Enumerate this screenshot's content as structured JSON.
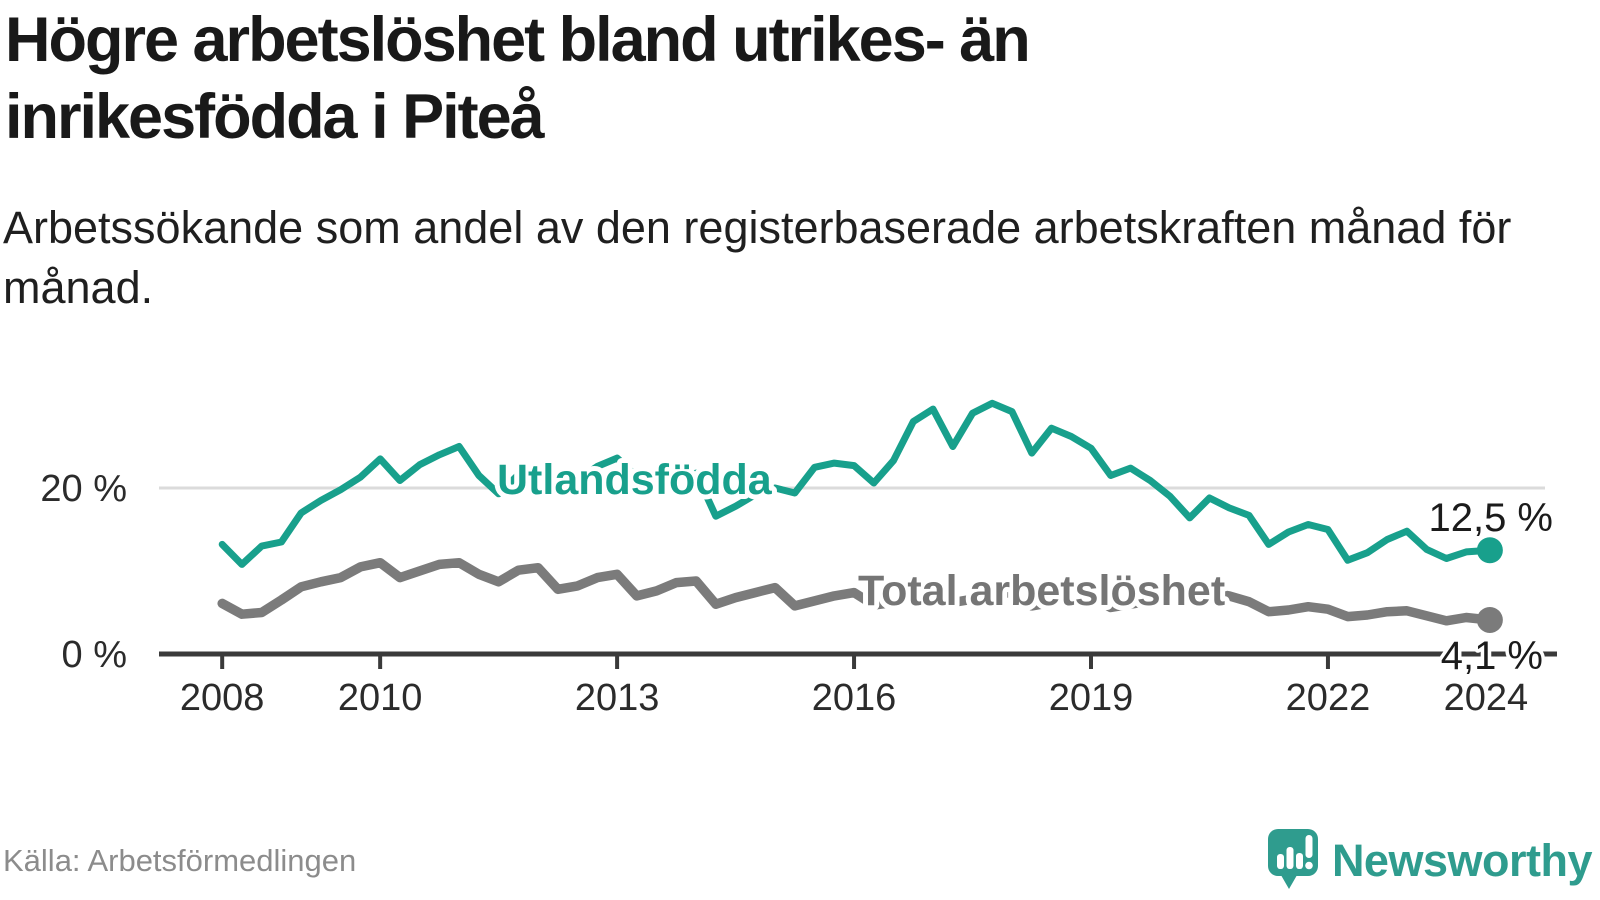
{
  "header": {
    "title": "Högre arbetslöshet bland utrikes- än inrikesfödda i Piteå",
    "subtitle": "Arbetssökande som andel av den registerbaserade arbetskraften månad för månad."
  },
  "footer": {
    "source": "Källa: Arbetsförmedlingen",
    "brand_name": "Newsworthy"
  },
  "colors": {
    "teal": "#18a08c",
    "gray": "#7b7b7b",
    "gray_label": "#757575",
    "axis": "#3a3a3a",
    "gridline": "#dbdbdb",
    "tick_text": "#2b2b2b",
    "value_text": "#1b1b1b",
    "logo_teal": "#2f9c8e"
  },
  "chart_data": {
    "type": "line",
    "x_unit": "decimal_year",
    "xlim": [
      2007.2,
      2024.9
    ],
    "ylim": [
      0,
      33
    ],
    "grid": "y-20-only",
    "x_ticks": [
      {
        "value": 2008,
        "label": "2008"
      },
      {
        "value": 2010,
        "label": "2010"
      },
      {
        "value": 2013,
        "label": "2013"
      },
      {
        "value": 2016,
        "label": "2016"
      },
      {
        "value": 2019,
        "label": "2019"
      },
      {
        "value": 2022,
        "label": "2022"
      },
      {
        "value": 2024,
        "label": "2024"
      }
    ],
    "y_ticks": [
      {
        "value": 0,
        "label": "0 %"
      },
      {
        "value": 20,
        "label": "20 %"
      }
    ],
    "x": [
      2008,
      2008.25,
      2008.5,
      2008.75,
      2009,
      2009.25,
      2009.5,
      2009.75,
      2010,
      2010.25,
      2010.5,
      2010.75,
      2011,
      2011.25,
      2011.5,
      2011.75,
      2012,
      2012.25,
      2012.5,
      2012.75,
      2013,
      2013.25,
      2013.5,
      2013.75,
      2014,
      2014.25,
      2014.5,
      2014.75,
      2015,
      2015.25,
      2015.5,
      2015.75,
      2016,
      2016.25,
      2016.5,
      2016.75,
      2017,
      2017.25,
      2017.5,
      2017.75,
      2018,
      2018.25,
      2018.5,
      2018.75,
      2019,
      2019.25,
      2019.5,
      2019.75,
      2020,
      2020.25,
      2020.5,
      2020.75,
      2021,
      2021.25,
      2021.5,
      2021.75,
      2022,
      2022.25,
      2022.5,
      2022.75,
      2023,
      2023.25,
      2023.5,
      2023.75,
      2024.05
    ],
    "series": [
      {
        "name": "Utlandsfödda",
        "end_label": "12,5 %",
        "end_value": 12.5,
        "values": [
          13.2,
          10.8,
          13.0,
          13.5,
          17.0,
          18.5,
          19.8,
          21.3,
          23.5,
          20.9,
          22.8,
          24.0,
          25.0,
          21.5,
          19.3,
          21.6,
          21.8,
          20.4,
          21.0,
          22.6,
          23.6,
          21.4,
          20.2,
          21.2,
          21.8,
          16.6,
          17.8,
          19.2,
          20.0,
          19.4,
          22.5,
          23.0,
          22.7,
          20.6,
          23.3,
          28.0,
          29.5,
          25.0,
          29.0,
          30.2,
          29.2,
          24.2,
          27.2,
          26.2,
          24.8,
          21.5,
          22.4,
          20.9,
          19.0,
          16.4,
          18.8,
          17.6,
          16.7,
          13.2,
          14.7,
          15.6,
          15.0,
          11.3,
          12.2,
          13.8,
          14.8,
          12.6,
          11.5,
          12.3,
          12.5
        ]
      },
      {
        "name": "Total arbetslöshet",
        "end_label": "4,1 %",
        "end_value": 4.1,
        "values": [
          6.1,
          4.8,
          5.0,
          6.5,
          8.1,
          8.7,
          9.2,
          10.5,
          11.0,
          9.2,
          10.0,
          10.8,
          11.0,
          9.6,
          8.7,
          10.1,
          10.4,
          7.8,
          8.2,
          9.2,
          9.6,
          7.0,
          7.6,
          8.6,
          8.8,
          6.0,
          6.8,
          7.4,
          8.0,
          5.8,
          6.4,
          7.0,
          7.4,
          5.9,
          6.2,
          7.0,
          7.6,
          6.2,
          6.6,
          7.2,
          7.4,
          5.8,
          6.2,
          6.8,
          7.0,
          5.6,
          6.0,
          6.4,
          6.6,
          7.8,
          7.4,
          7.0,
          6.3,
          5.1,
          5.3,
          5.7,
          5.4,
          4.5,
          4.7,
          5.1,
          5.2,
          4.6,
          4.0,
          4.4,
          4.1
        ]
      }
    ]
  }
}
